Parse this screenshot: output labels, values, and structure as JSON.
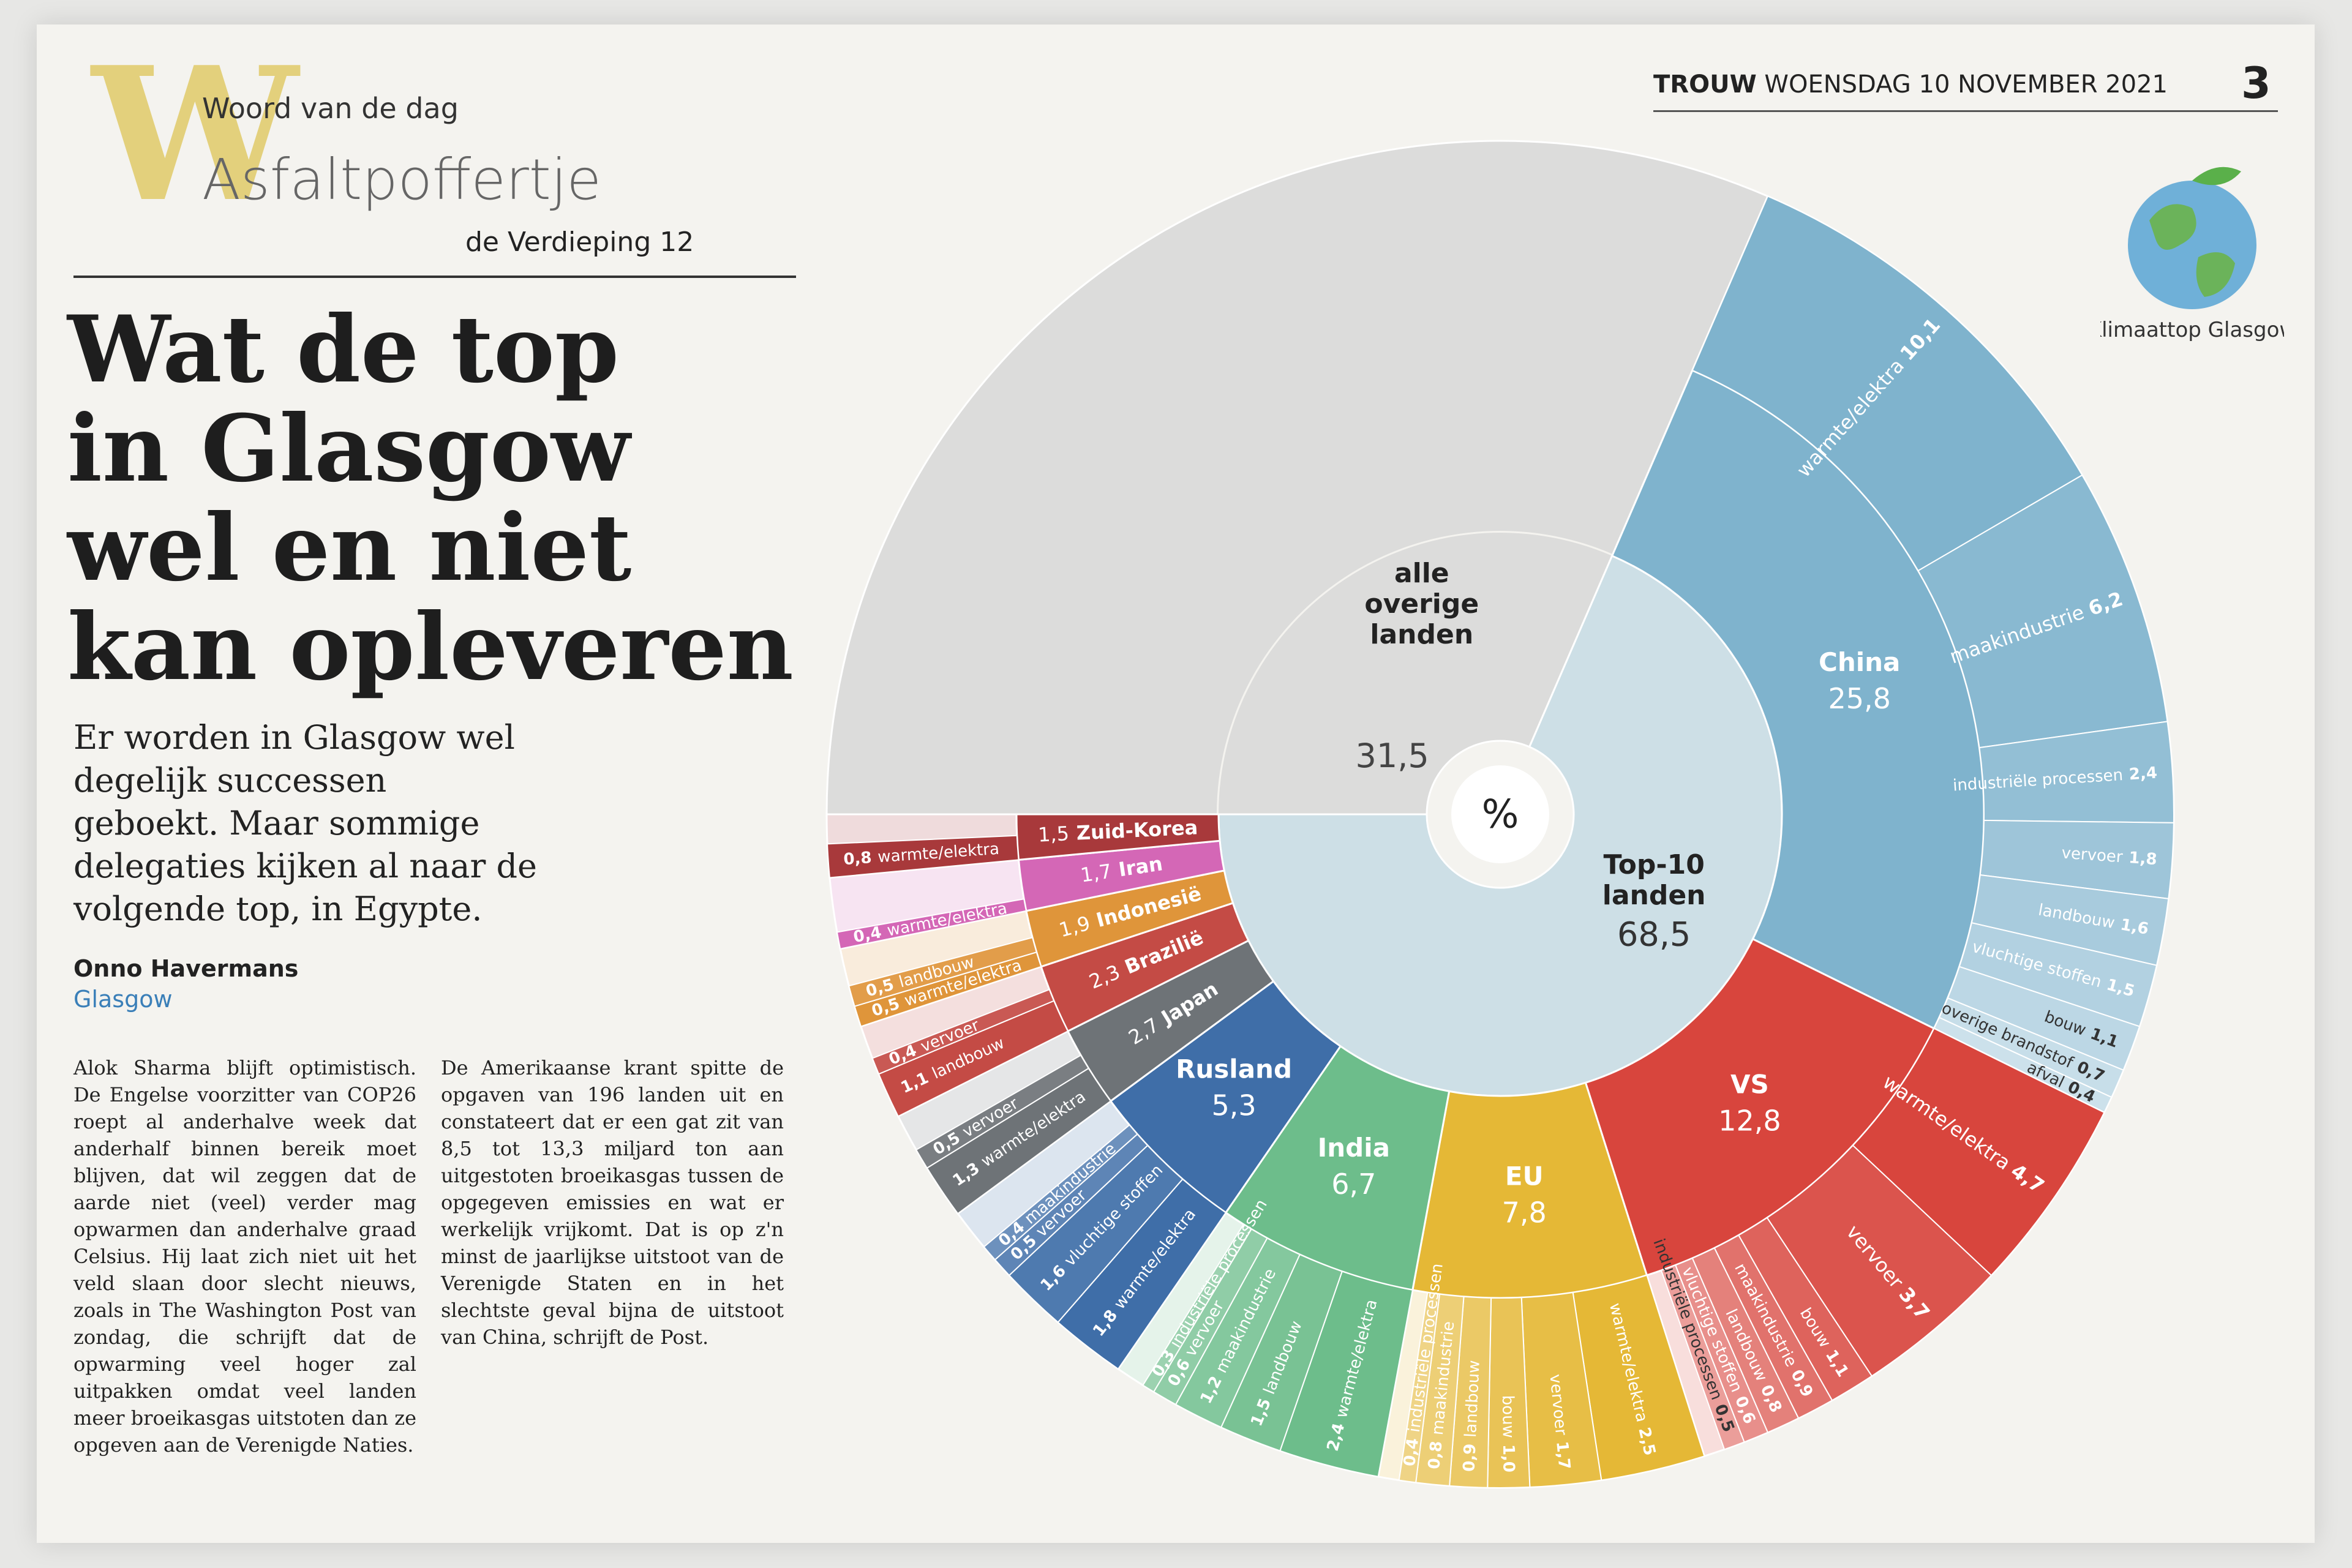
{
  "page": {
    "kicker": "Woord van de dag",
    "kicker_letter": "W",
    "word": "Asfaltpoffertje",
    "word_ref": "de Verdieping 12",
    "paper": "TROUW",
    "dateline": "WOENSDAG 10 NOVEMBER 2021",
    "page_number": "3",
    "logo": "Klimaattop Glasgow",
    "headline": [
      "Wat de top",
      "in Glasgow",
      "wel en niet",
      "kan opleveren"
    ],
    "intro": [
      "Er worden in Glasgow wel",
      "degelijk successen",
      "geboekt. Maar sommige",
      "delegaties kijken al naar de",
      "volgende top, in Egypte."
    ],
    "author": "Onno Havermans",
    "location": "Glasgow",
    "body": [
      "Alok Sharma blijft optimistisch. De Engelse voorzitter van COP26 roept al anderhalve week dat anderhalf binnen bereik moet blijven, dat wil zeggen dat de aarde niet (veel) verder mag opwarmen dan anderhalve graad Celsius. Hij laat zich niet uit het veld slaan door slecht nieuws, zoals in The Washington Post van zondag, die schrijft dat de opwarming veel hoger zal uitpakken omdat veel landen meer broeikasgas uitstoten dan ze opgeven aan de Verenigde Naties.",
      "De Amerikaanse krant spitte de opgaven van 196 landen uit en constateert dat er een gat zit van 8,5 tot 13,3 miljard ton aan uitgestoten broeikasgas tussen de opgegeven emissies en wat er werkelijk vrijkomt. Dat is op z'n minst de jaarlijkse uitstoot van de Verenigde Staten en in het slechtste geval bijna de uitstoot van China, schrijft de Post."
    ]
  },
  "chart_data": {
    "type": "sunburst",
    "unit": "%",
    "groups": [
      {
        "name": "alle overige landen",
        "value": 31.5,
        "value_label": "31,5",
        "color": "#dcdcdb"
      },
      {
        "name": "Top-10 landen",
        "value": 68.5,
        "value_label": "68,5",
        "color": "#cddfe6",
        "children": [
          {
            "name": "China",
            "value": 25.8,
            "value_label": "25,8",
            "color": "#7fb3cd",
            "children": [
              {
                "name": "warmte/elektra",
                "value": 10.1,
                "value_label": "10,1"
              },
              {
                "name": "maakindustrie",
                "value": 6.2,
                "value_label": "6,2"
              },
              {
                "name": "industriële processen",
                "value": 2.4,
                "value_label": "2,4"
              },
              {
                "name": "vervoer",
                "value": 1.8,
                "value_label": "1,8"
              },
              {
                "name": "landbouw",
                "value": 1.6,
                "value_label": "1,6"
              },
              {
                "name": "vluchtige stoffen",
                "value": 1.5,
                "value_label": "1,5"
              },
              {
                "name": "bouw",
                "value": 1.1,
                "value_label": "1,1"
              },
              {
                "name": "overige brandstof",
                "value": 0.7,
                "value_label": "0,7"
              },
              {
                "name": "afval",
                "value": 0.4,
                "value_label": "0,4"
              }
            ]
          },
          {
            "name": "VS",
            "value": 12.8,
            "value_label": "12,8",
            "color": "#d8453d",
            "children": [
              {
                "name": "warmte/elektra",
                "value": 4.7,
                "value_label": "4,7"
              },
              {
                "name": "vervoer",
                "value": 3.7,
                "value_label": "3,7"
              },
              {
                "name": "bouw",
                "value": 1.1,
                "value_label": "1,1"
              },
              {
                "name": "maakindustrie",
                "value": 0.9,
                "value_label": "0,9"
              },
              {
                "name": "landbouw",
                "value": 0.8,
                "value_label": "0,8"
              },
              {
                "name": "vluchtige stoffen",
                "value": 0.6,
                "value_label": "0,6"
              },
              {
                "name": "industriële processen",
                "value": 0.5,
                "value_label": "0,5"
              }
            ]
          },
          {
            "name": "EU",
            "value": 7.8,
            "value_label": "7,8",
            "color": "#e5b836",
            "children": [
              {
                "name": "warmte/elektra",
                "value": 2.5,
                "value_label": "2,5"
              },
              {
                "name": "vervoer",
                "value": 1.7,
                "value_label": "1,7"
              },
              {
                "name": "bouw",
                "value": 1.0,
                "value_label": "1,0"
              },
              {
                "name": "landbouw",
                "value": 0.9,
                "value_label": "0,9"
              },
              {
                "name": "maakindustrie",
                "value": 0.8,
                "value_label": "0,8"
              },
              {
                "name": "industriële processen",
                "value": 0.4,
                "value_label": "0,4"
              }
            ]
          },
          {
            "name": "India",
            "value": 6.7,
            "value_label": "6,7",
            "color": "#6dbd8b",
            "children": [
              {
                "name": "warmte/elektra",
                "value": 2.4,
                "value_label": "2,4"
              },
              {
                "name": "landbouw",
                "value": 1.5,
                "value_label": "1,5"
              },
              {
                "name": "maakindustrie",
                "value": 1.2,
                "value_label": "1,2"
              },
              {
                "name": "vervoer",
                "value": 0.6,
                "value_label": "0,6"
              },
              {
                "name": "industriële processen",
                "value": 0.3,
                "value_label": "0,3"
              }
            ]
          },
          {
            "name": "Rusland",
            "value": 5.3,
            "value_label": "5,3",
            "color": "#3f6ea8",
            "children": [
              {
                "name": "warmte/elektra",
                "value": 1.8,
                "value_label": "1,8"
              },
              {
                "name": "vluchtige stoffen",
                "value": 1.6,
                "value_label": "1,6"
              },
              {
                "name": "vervoer",
                "value": 0.5,
                "value_label": "0,5"
              },
              {
                "name": "maakindustrie",
                "value": 0.4,
                "value_label": "0,4"
              }
            ]
          },
          {
            "name": "Japan",
            "value": 2.7,
            "value_label": "2,7",
            "color": "#6e7377",
            "children": [
              {
                "name": "warmte/elektra",
                "value": 1.3,
                "value_label": "1,3"
              },
              {
                "name": "vervoer",
                "value": 0.5,
                "value_label": "0,5"
              }
            ]
          },
          {
            "name": "Brazilië",
            "value": 2.3,
            "value_label": "2,3",
            "color": "#c44b45",
            "children": [
              {
                "name": "landbouw",
                "value": 1.1,
                "value_label": "1,1"
              },
              {
                "name": "vervoer",
                "value": 0.4,
                "value_label": "0,4"
              }
            ]
          },
          {
            "name": "Indonesië",
            "value": 1.9,
            "value_label": "1,9",
            "color": "#df953a",
            "children": [
              {
                "name": "warmte/elektra",
                "value": 0.5,
                "value_label": "0,5"
              },
              {
                "name": "landbouw",
                "value": 0.5,
                "value_label": "0,5"
              }
            ]
          },
          {
            "name": "Iran",
            "value": 1.7,
            "value_label": "1,7",
            "color": "#d467b6",
            "children": [
              {
                "name": "warmte/elektra",
                "value": 0.4,
                "value_label": "0,4"
              }
            ]
          },
          {
            "name": "Zuid-Korea",
            "value": 1.5,
            "value_label": "1,5",
            "color": "#a8393b",
            "children": [
              {
                "name": "warmte/elektra",
                "value": 0.8,
                "value_label": "0,8"
              }
            ]
          }
        ]
      }
    ]
  }
}
